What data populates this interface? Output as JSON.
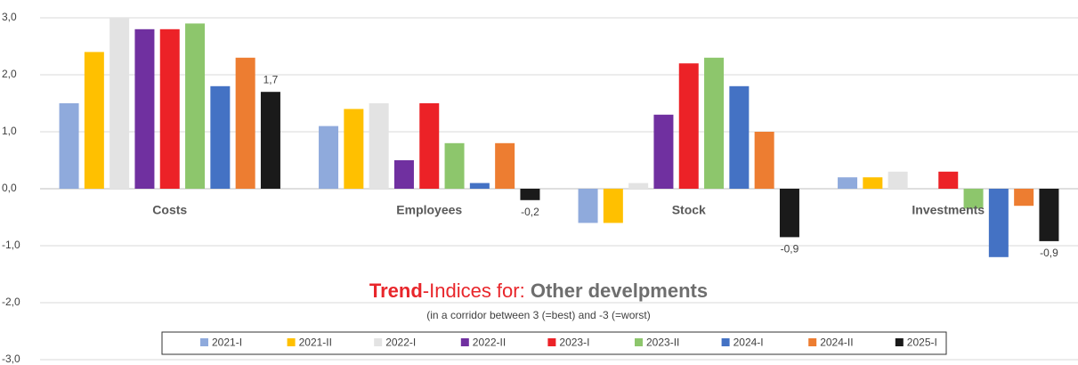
{
  "chart_data": {
    "type": "bar",
    "title_parts": [
      "Trend",
      "-Indices for: ",
      "Other develpments"
    ],
    "subtitle": "(in a corridor between 3 (=best) and -3 (=worst)",
    "categories": [
      "Costs",
      "Employees",
      "Stock",
      "Investments"
    ],
    "series": [
      {
        "name": "2021-I",
        "color": "#8faadc",
        "values": [
          1.5,
          1.1,
          -0.6,
          0.2
        ]
      },
      {
        "name": "2021-II",
        "color": "#ffc000",
        "values": [
          2.4,
          1.4,
          -0.6,
          0.2
        ]
      },
      {
        "name": "2022-I",
        "color": "#e3e3e3",
        "values": [
          3.0,
          1.5,
          0.1,
          0.3
        ]
      },
      {
        "name": "2022-II",
        "color": "#7030a0",
        "values": [
          2.8,
          0.5,
          1.3,
          0
        ]
      },
      {
        "name": "2023-I",
        "color": "#ec2227",
        "values": [
          2.8,
          1.5,
          2.2,
          0.3
        ]
      },
      {
        "name": "2023-II",
        "color": "#8dc66c",
        "values": [
          2.9,
          0.8,
          2.3,
          -0.35
        ]
      },
      {
        "name": "2024-I",
        "color": "#4472c4",
        "values": [
          1.8,
          0.1,
          1.8,
          -1.2
        ]
      },
      {
        "name": "2024-II",
        "color": "#ed7d31",
        "values": [
          2.3,
          0.8,
          1.0,
          -0.3
        ]
      },
      {
        "name": "2025-I",
        "color": "#1a1a1a",
        "values": [
          1.7,
          -0.2,
          -0.85,
          -0.92
        ],
        "value_labels": [
          "1,7",
          "-0,2",
          "-0,9",
          "-0,9"
        ]
      }
    ],
    "ylim": [
      -3,
      3
    ],
    "yticks": [
      {
        "value": 3,
        "label": "3,0"
      },
      {
        "value": 2,
        "label": "2,0"
      },
      {
        "value": 1,
        "label": "1,0"
      },
      {
        "value": 0,
        "label": "0,0"
      },
      {
        "value": -1,
        "label": "-1,0"
      },
      {
        "value": -2,
        "label": "-2,0"
      },
      {
        "value": -3,
        "label": "-3,0"
      }
    ],
    "grid": true,
    "legend": "bottom"
  }
}
